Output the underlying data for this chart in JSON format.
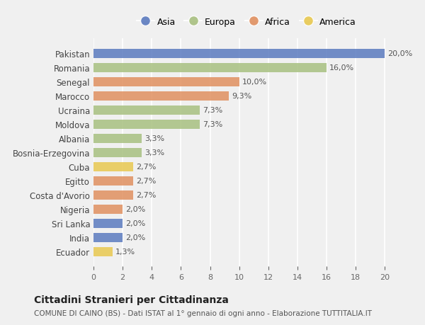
{
  "countries": [
    "Pakistan",
    "Romania",
    "Senegal",
    "Marocco",
    "Ucraina",
    "Moldova",
    "Albania",
    "Bosnia-Erzegovina",
    "Cuba",
    "Egitto",
    "Costa d'Avorio",
    "Nigeria",
    "Sri Lanka",
    "India",
    "Ecuador"
  ],
  "values": [
    20.0,
    16.0,
    10.0,
    9.3,
    7.3,
    7.3,
    3.3,
    3.3,
    2.7,
    2.7,
    2.7,
    2.0,
    2.0,
    2.0,
    1.3
  ],
  "labels": [
    "20,0%",
    "16,0%",
    "10,0%",
    "9,3%",
    "7,3%",
    "7,3%",
    "3,3%",
    "3,3%",
    "2,7%",
    "2,7%",
    "2,7%",
    "2,0%",
    "2,0%",
    "2,0%",
    "1,3%"
  ],
  "continents": [
    "Asia",
    "Europa",
    "Africa",
    "Africa",
    "Europa",
    "Europa",
    "Europa",
    "Europa",
    "America",
    "Africa",
    "Africa",
    "Africa",
    "Asia",
    "Asia",
    "America"
  ],
  "colors": {
    "Asia": "#5b7bbf",
    "Europa": "#a8c080",
    "Africa": "#e09060",
    "America": "#e8c850"
  },
  "legend_order": [
    "Asia",
    "Europa",
    "Africa",
    "America"
  ],
  "background_color": "#f0f0f0",
  "title": "Cittadini Stranieri per Cittadinanza",
  "subtitle": "COMUNE DI CAINO (BS) - Dati ISTAT al 1° gennaio di ogni anno - Elaborazione TUTTITALIA.IT",
  "xlim": [
    0,
    21
  ],
  "xticks": [
    0,
    2,
    4,
    6,
    8,
    10,
    12,
    14,
    16,
    18,
    20
  ]
}
